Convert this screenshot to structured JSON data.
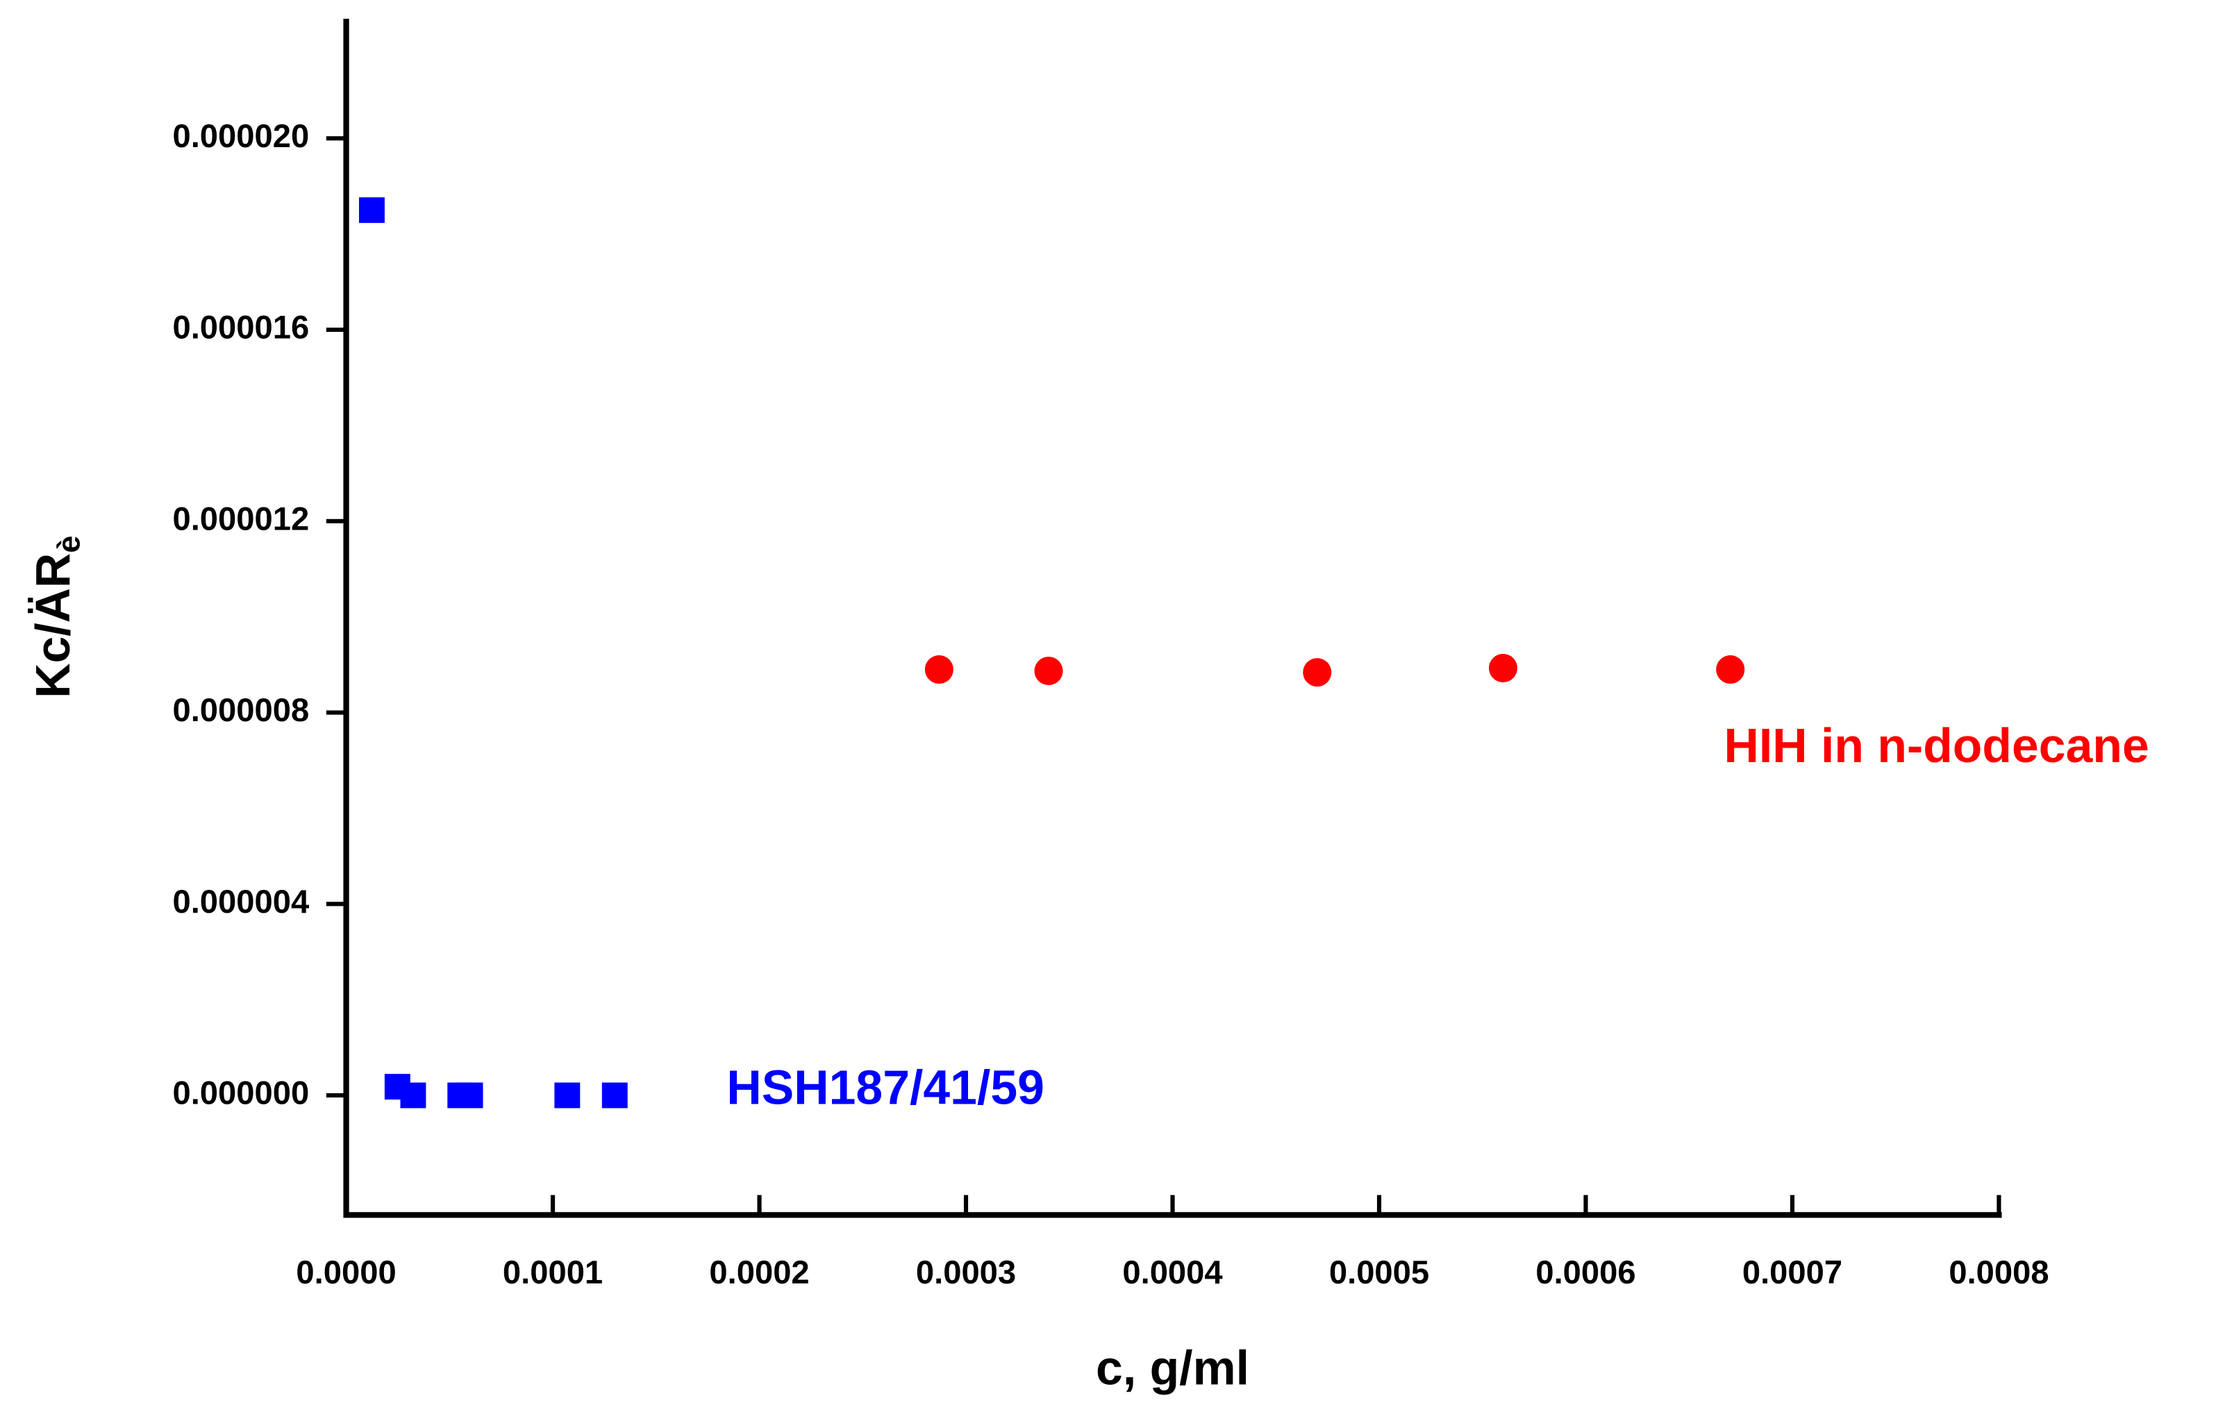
{
  "chart_data": {
    "type": "scatter",
    "xlabel": "c, g/ml",
    "ylabel": {
      "text": "Kc/ÄR",
      "sub": "è"
    },
    "xlim": [
      0,
      0.0008
    ],
    "ylim": [
      -2.5e-06,
      2.25e-05
    ],
    "xticks": [
      {
        "value": 0,
        "label": "0.0000"
      },
      {
        "value": 0.0001,
        "label": "0.0001"
      },
      {
        "value": 0.0002,
        "label": "0.0002"
      },
      {
        "value": 0.0003,
        "label": "0.0003"
      },
      {
        "value": 0.0004,
        "label": "0.0004"
      },
      {
        "value": 0.0005,
        "label": "0.0005"
      },
      {
        "value": 0.0006,
        "label": "0.0006"
      },
      {
        "value": 0.0007,
        "label": "0.0007"
      },
      {
        "value": 0.0008,
        "label": "0.0008"
      }
    ],
    "yticks": [
      {
        "value": 0,
        "label": "0.000000"
      },
      {
        "value": 4e-06,
        "label": "0.000004"
      },
      {
        "value": 8e-06,
        "label": "0.000008"
      },
      {
        "value": 1.2e-05,
        "label": "0.000012"
      },
      {
        "value": 1.6e-05,
        "label": "0.000016"
      },
      {
        "value": 2e-05,
        "label": "0.000020"
      }
    ],
    "grid": false,
    "series": [
      {
        "name": "HSH187/41/59",
        "color": "#0000ff",
        "marker": "square",
        "x": [
          1.24e-05,
          2.48e-05,
          3.24e-05,
          5.52e-05,
          6e-05,
          0.000107,
          0.00013
        ],
        "values": [
          1.85e-05,
          1.8e-07,
          0,
          0,
          0,
          0,
          0
        ]
      },
      {
        "name": "HIH in n-dodecane",
        "color": "#ff0000",
        "marker": "circle",
        "x": [
          0.000287,
          0.00034,
          0.00047,
          0.00056,
          0.00067
        ],
        "values": [
          8.9e-06,
          8.87e-06,
          8.84e-06,
          8.93e-06,
          8.9e-06
        ]
      }
    ]
  }
}
